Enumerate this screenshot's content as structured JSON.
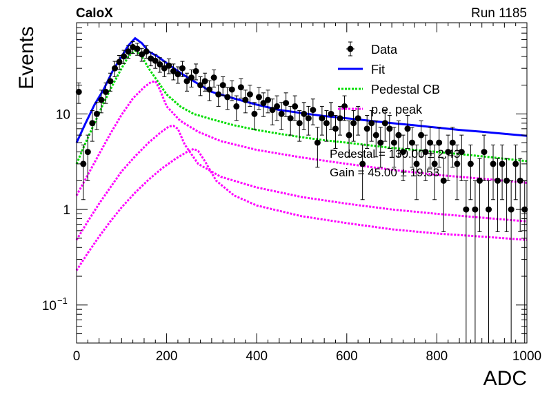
{
  "chart_data": {
    "type": "scatter",
    "title_left": "CaloX",
    "title_right": "Run 1185",
    "xlabel": "ADC",
    "ylabel": "Events",
    "xlim": [
      0,
      1000
    ],
    "ylim": [
      0.04,
      90
    ],
    "y_scale": "log",
    "x_ticks": [
      {
        "v": 0,
        "label": "0"
      },
      {
        "v": 200,
        "label": "200"
      },
      {
        "v": 400,
        "label": "400"
      },
      {
        "v": 600,
        "label": "600"
      },
      {
        "v": 800,
        "label": "800"
      },
      {
        "v": 1000,
        "label": "1000"
      }
    ],
    "y_ticks": [
      {
        "v": 0.1,
        "base": "10",
        "exp": "−1"
      },
      {
        "v": 1,
        "base": "1",
        "exp": ""
      },
      {
        "v": 10,
        "base": "10",
        "exp": ""
      }
    ],
    "legend": {
      "position": "top-right",
      "entries": [
        {
          "label": "Data",
          "kind": "marker",
          "color": "#000000"
        },
        {
          "label": "Fit",
          "kind": "line",
          "color": "#0000ff"
        },
        {
          "label": "Pedestal CB",
          "kind": "dotted",
          "color": "#00dd00"
        },
        {
          "label": "p.e. peak",
          "kind": "dotted",
          "color": "#ff00ff"
        }
      ]
    },
    "annotations": [
      "Pedestal = 130.00 ± 2.43",
      "Gain = 45.00 ± 19.53"
    ],
    "series": [
      {
        "name": "Data",
        "kind": "points",
        "color": "#000000",
        "x": [
          5,
          15,
          25,
          35,
          45,
          55,
          65,
          75,
          85,
          95,
          105,
          115,
          125,
          135,
          145,
          155,
          165,
          175,
          185,
          195,
          205,
          215,
          225,
          235,
          245,
          255,
          265,
          275,
          285,
          295,
          305,
          315,
          325,
          335,
          345,
          355,
          365,
          375,
          385,
          395,
          405,
          415,
          425,
          435,
          445,
          455,
          465,
          475,
          485,
          495,
          505,
          515,
          525,
          535,
          545,
          555,
          565,
          575,
          585,
          595,
          605,
          615,
          625,
          635,
          645,
          655,
          665,
          675,
          685,
          695,
          705,
          715,
          725,
          735,
          745,
          755,
          765,
          775,
          785,
          795,
          805,
          815,
          825,
          835,
          845,
          855,
          865,
          875,
          885,
          895,
          905,
          915,
          925,
          935,
          945,
          955,
          965,
          975,
          985,
          995
        ],
        "y": [
          17,
          3,
          4,
          8,
          10,
          14,
          17,
          22,
          30,
          35,
          40,
          45,
          50,
          48,
          42,
          45,
          38,
          36,
          33,
          30,
          32,
          28,
          26,
          30,
          22,
          24,
          28,
          20,
          22,
          18,
          24,
          16,
          20,
          15,
          18,
          12,
          19,
          14,
          16,
          10,
          15,
          13,
          14,
          11,
          12,
          10,
          13,
          9,
          12,
          8,
          10,
          9,
          11,
          5,
          9,
          8,
          10,
          7,
          9,
          12,
          6,
          8,
          9,
          3,
          7,
          8,
          6,
          5,
          8,
          7,
          5,
          6,
          4,
          7,
          5,
          3,
          6,
          4,
          5,
          3,
          5,
          2,
          4,
          5,
          3,
          4,
          1,
          3,
          1,
          2,
          4,
          1,
          3,
          2,
          3,
          2,
          1,
          3,
          2,
          1
        ]
      },
      {
        "name": "Fit",
        "kind": "line",
        "color": "#0000ff",
        "x": [
          0,
          20,
          40,
          60,
          80,
          100,
          115,
          130,
          145,
          160,
          180,
          200,
          230,
          260,
          300,
          350,
          400,
          450,
          500,
          550,
          600,
          650,
          700,
          750,
          800,
          850,
          900,
          950,
          1000
        ],
        "y": [
          5,
          8,
          12.5,
          18,
          28,
          40,
          52,
          62,
          55,
          45,
          40,
          34,
          27,
          22,
          17,
          14.5,
          12.5,
          11,
          10.2,
          9.5,
          9,
          8.5,
          8,
          7.6,
          7.2,
          6.8,
          6.5,
          6.2,
          5.9
        ]
      },
      {
        "name": "Pedestal CB",
        "kind": "dotted",
        "color": "#00dd00",
        "x": [
          0,
          20,
          40,
          60,
          80,
          100,
          115,
          130,
          145,
          160,
          180,
          200,
          230,
          260,
          300,
          350,
          400,
          450,
          500,
          550,
          600,
          650,
          700,
          750,
          800,
          850,
          900,
          950,
          1000
        ],
        "y": [
          3,
          5,
          8,
          13,
          20,
          30,
          40,
          46,
          40,
          30,
          22,
          16,
          12,
          10,
          8.8,
          7.6,
          6.8,
          6.2,
          5.7,
          5.3,
          5,
          4.7,
          4.4,
          4.2,
          4,
          3.8,
          3.6,
          3.4,
          3.2
        ]
      },
      {
        "name": "p.e. peak",
        "kind": "dotted",
        "color": "#ff00ff",
        "x": [
          0,
          25,
          50,
          75,
          100,
          125,
          150,
          165,
          175,
          185,
          200,
          230,
          270,
          320,
          400,
          500,
          600,
          700,
          800,
          900,
          1000
        ],
        "y": [
          1.4,
          2.3,
          3.8,
          6.2,
          9.8,
          14.5,
          19,
          21.5,
          22,
          18,
          12,
          8.5,
          6.5,
          5.2,
          4.2,
          3.5,
          3,
          2.6,
          2.3,
          2.1,
          1.9
        ]
      },
      {
        "name": "p.e. peak",
        "kind": "dotted",
        "color": "#ff00ff",
        "x": [
          0,
          25,
          50,
          75,
          100,
          130,
          160,
          185,
          205,
          215,
          225,
          240,
          270,
          320,
          400,
          500,
          600,
          700,
          800,
          900,
          1000
        ],
        "y": [
          0.48,
          0.75,
          1.15,
          1.7,
          2.5,
          3.6,
          5,
          6.3,
          7.4,
          7.5,
          7,
          4.8,
          3,
          2.2,
          1.7,
          1.35,
          1.15,
          1.0,
          0.9,
          0.82,
          0.75
        ]
      },
      {
        "name": "p.e. peak",
        "kind": "dotted",
        "color": "#ff00ff",
        "x": [
          0,
          25,
          50,
          75,
          100,
          130,
          160,
          190,
          220,
          245,
          260,
          270,
          285,
          310,
          350,
          400,
          500,
          600,
          700,
          800,
          900,
          1000
        ],
        "y": [
          0.23,
          0.35,
          0.52,
          0.75,
          1.05,
          1.5,
          2.05,
          2.7,
          3.4,
          4.0,
          4.3,
          4.1,
          3.2,
          2.0,
          1.4,
          1.1,
          0.85,
          0.72,
          0.62,
          0.56,
          0.52,
          0.48
        ]
      }
    ]
  }
}
